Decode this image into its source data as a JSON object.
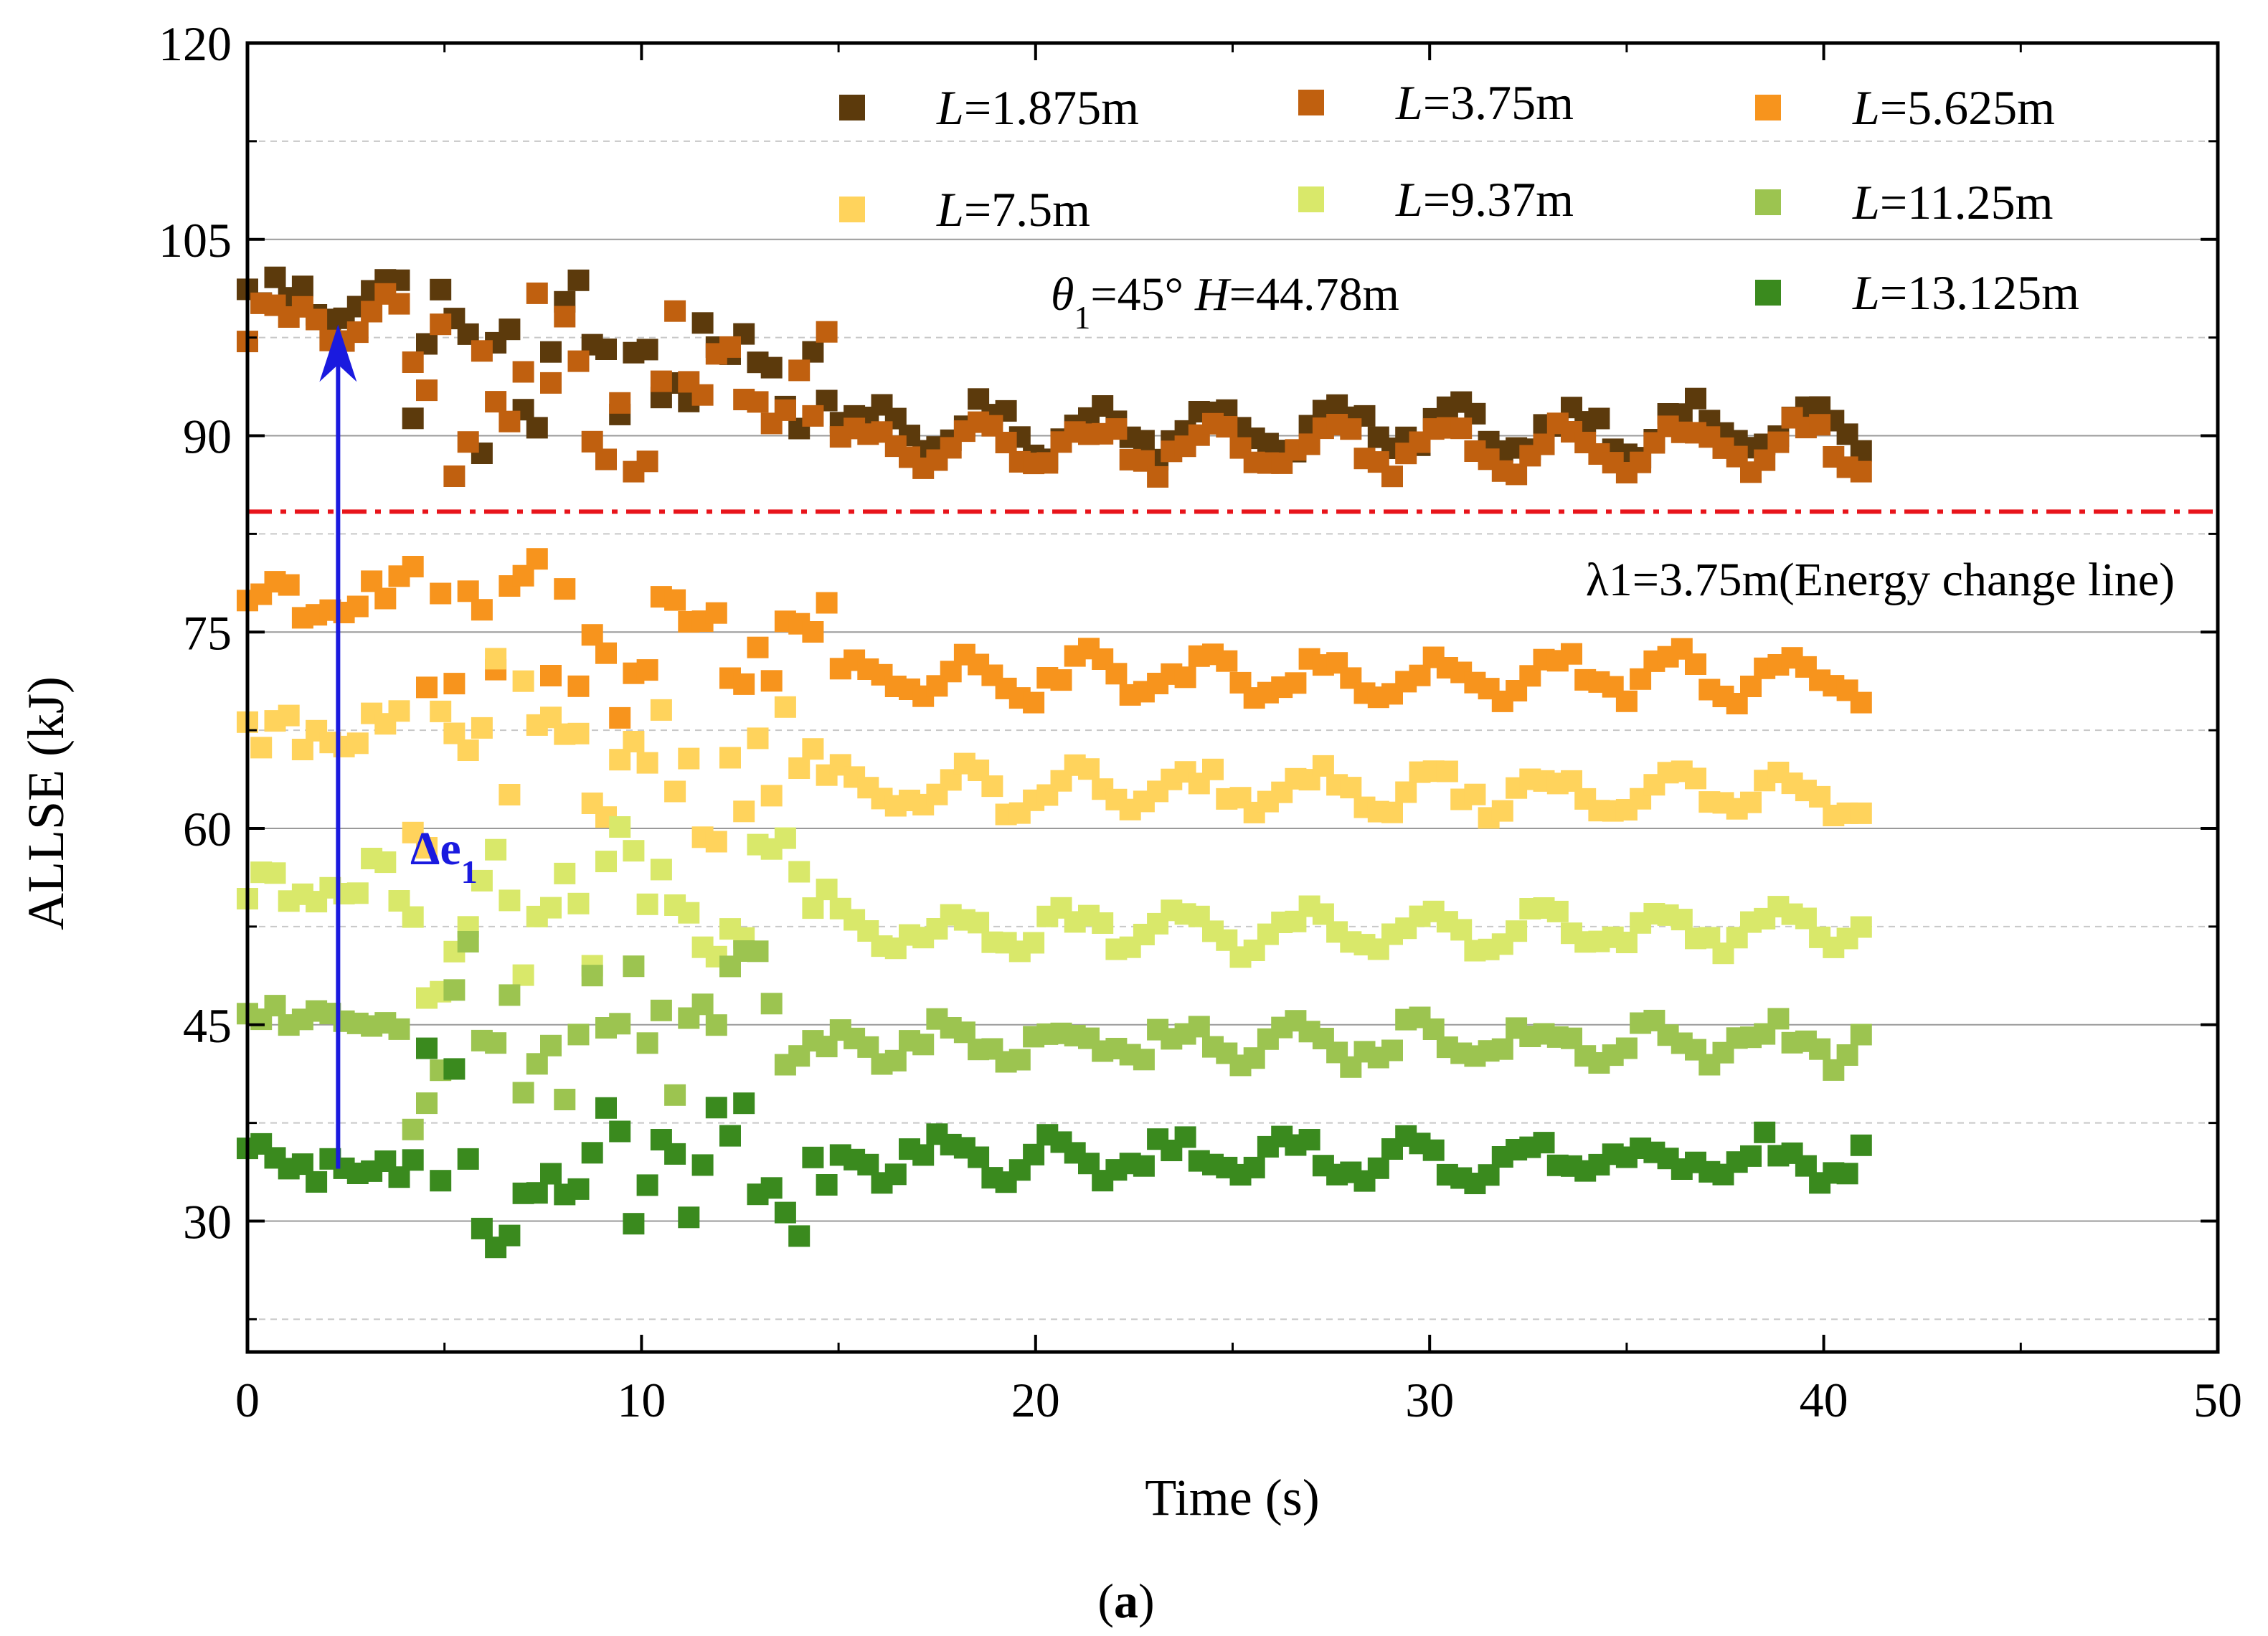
{
  "chart_data": {
    "type": "scatter",
    "title": "",
    "xlabel": "Time (s)",
    "ylabel": "ALLSE (kJ)",
    "xlim": [
      0,
      50
    ],
    "ylim": [
      20,
      120
    ],
    "xticks": [
      0,
      10,
      20,
      30,
      40,
      50
    ],
    "yticks": [
      30,
      45,
      60,
      75,
      90,
      105,
      120
    ],
    "xtick_labels": [
      "0",
      "10",
      "20",
      "30",
      "40",
      "50"
    ],
    "ytick_labels": [
      "30",
      "45",
      "60",
      "75",
      "90",
      "105",
      "120"
    ],
    "grid": true,
    "legend_position": "top-right",
    "series": [
      {
        "name": "=1.875m",
        "var": "L",
        "color": "#5c3a0c",
        "baseline": 90.5,
        "start": 100.5,
        "amp": 1.6
      },
      {
        "name": "=3.75m",
        "var": "L",
        "color": "#c0600f",
        "baseline": 89.2,
        "start": 98.5,
        "amp": 1.6
      },
      {
        "name": "=5.625m",
        "var": "L",
        "color": "#f7941d",
        "baseline": 71.5,
        "start": 77.5,
        "amp": 1.5
      },
      {
        "name": "=7.5m",
        "var": "L",
        "color": "#ffd35c",
        "baseline": 62.8,
        "start": 67.0,
        "amp": 1.4
      },
      {
        "name": "=9.37m",
        "var": "L",
        "color": "#d9e86a",
        "baseline": 52.2,
        "start": 55.5,
        "amp": 1.4
      },
      {
        "name": "=11.25m",
        "var": "L",
        "color": "#9cc450",
        "baseline": 43.6,
        "start": 45.5,
        "amp": 1.3
      },
      {
        "name": "=13.125m",
        "var": "L",
        "color": "#3a8a1e",
        "baseline": 34.8,
        "start": 34.0,
        "amp": 1.3
      }
    ],
    "energy_change_line": {
      "y": 84.2,
      "color": "#e8141b",
      "label": "λ1=3.75m(Energy change line)"
    },
    "arrow": {
      "x": 2.3,
      "y_from": 34.0,
      "y_to": 98.5,
      "color": "#1a1adf",
      "label_main": "Δe",
      "label_sub": "1"
    },
    "condition": {
      "theta_var": "θ",
      "theta_sub": "1",
      "theta_val": "=45°",
      "h_var": "H",
      "h_val": "=44.78m"
    },
    "panel_label": {
      "open": "(",
      "letter": "a",
      "close": ")"
    },
    "x_data_max": 41.1,
    "x_step": 0.35
  }
}
